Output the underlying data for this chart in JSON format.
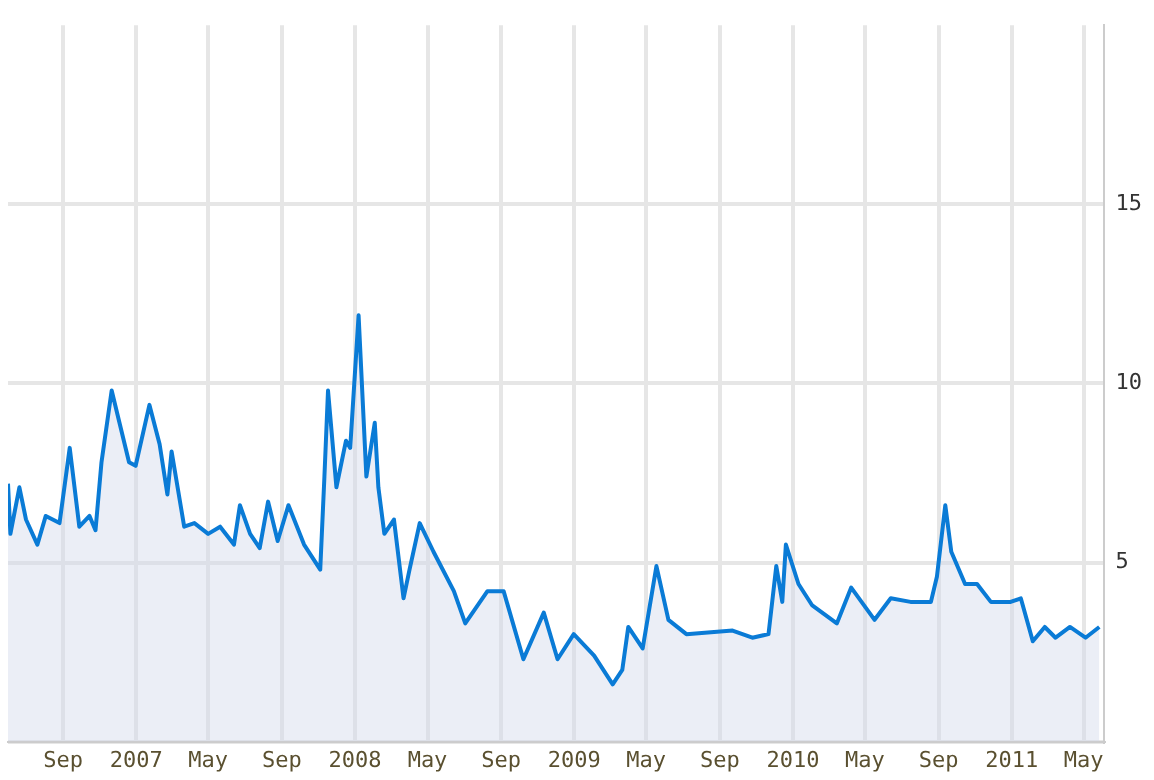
{
  "chart_data": {
    "type": "area",
    "x": [
      "2006-06-01",
      "2006-06-05",
      "2006-06-20",
      "2006-07-01",
      "2006-07-20",
      "2006-08-03",
      "2006-08-26",
      "2006-09-12",
      "2006-09-28",
      "2006-10-15",
      "2006-10-25",
      "2006-11-04",
      "2006-11-21",
      "2006-12-04",
      "2006-12-20",
      "2006-12-31",
      "2007-01-23",
      "2007-02-09",
      "2007-02-22",
      "2007-03-01",
      "2007-03-22",
      "2007-04-08",
      "2007-05-01",
      "2007-05-21",
      "2007-06-13",
      "2007-06-23",
      "2007-07-10",
      "2007-07-26",
      "2007-08-09",
      "2007-08-25",
      "2007-09-12",
      "2007-10-08",
      "2007-11-04",
      "2007-11-11",
      "2007-11-17",
      "2007-12-01",
      "2007-12-17",
      "2007-12-24",
      "2008-01-07",
      "2008-01-20",
      "2008-02-03",
      "2008-02-09",
      "2008-02-19",
      "2008-03-06",
      "2008-03-22",
      "2008-04-01",
      "2008-04-18",
      "2008-05-11",
      "2008-06-14",
      "2008-07-03",
      "2008-08-09",
      "2008-09-05",
      "2008-10-08",
      "2008-11-11",
      "2008-12-04",
      "2008-12-31",
      "2009-02-03",
      "2009-03-06",
      "2009-03-22",
      "2009-04-01",
      "2009-04-25",
      "2009-05-18",
      "2009-06-07",
      "2009-07-07",
      "2009-09-22",
      "2009-10-25",
      "2009-11-21",
      "2009-12-04",
      "2009-12-14",
      "2009-12-20",
      "2010-01-10",
      "2010-02-02",
      "2010-03-15",
      "2010-04-08",
      "2010-05-17",
      "2010-06-13",
      "2010-07-16",
      "2010-08-19",
      "2010-08-29",
      "2010-09-12",
      "2010-09-22",
      "2010-10-15",
      "2010-11-04",
      "2010-11-27",
      "2010-12-30",
      "2011-01-16",
      "2011-02-05",
      "2011-02-25",
      "2011-03-15",
      "2011-04-08",
      "2011-05-04",
      "2011-05-27"
    ],
    "series": [
      {
        "color": "#0a7bd6",
        "values": [
          7.2,
          5.8,
          7.1,
          6.2,
          5.5,
          6.3,
          6.1,
          8.2,
          6.0,
          6.3,
          5.9,
          7.8,
          9.8,
          8.9,
          7.8,
          7.7,
          9.4,
          8.3,
          6.9,
          8.1,
          6.0,
          6.1,
          5.8,
          6.0,
          5.5,
          6.6,
          5.8,
          5.4,
          6.7,
          5.6,
          6.6,
          5.5,
          4.8,
          7.4,
          9.8,
          7.1,
          8.4,
          8.2,
          11.9,
          7.4,
          8.9,
          7.1,
          5.8,
          6.2,
          4.0,
          4.8,
          6.1,
          5.3,
          4.2,
          3.3,
          4.2,
          4.2,
          2.3,
          3.6,
          2.3,
          3.0,
          2.4,
          1.6,
          2.0,
          3.2,
          2.6,
          4.9,
          3.4,
          3.0,
          3.1,
          2.9,
          3.0,
          4.9,
          3.9,
          5.5,
          4.4,
          3.8,
          3.3,
          4.3,
          3.4,
          4.0,
          3.9,
          3.9,
          4.6,
          6.6,
          5.3,
          4.4,
          4.4,
          3.9,
          3.9,
          4.0,
          2.8,
          3.2,
          2.9,
          3.2,
          2.9,
          3.2
        ]
      }
    ],
    "xlim": [
      "2006-06-01",
      "2011-06-03"
    ],
    "xticks": [
      {
        "value": "2006-09-01",
        "label": "Sep"
      },
      {
        "value": "2007-01-01",
        "label": "2007"
      },
      {
        "value": "2007-05-01",
        "label": "May"
      },
      {
        "value": "2007-09-01",
        "label": "Sep"
      },
      {
        "value": "2008-01-01",
        "label": "2008"
      },
      {
        "value": "2008-05-01",
        "label": "May"
      },
      {
        "value": "2008-09-01",
        "label": "Sep"
      },
      {
        "value": "2009-01-01",
        "label": "2009"
      },
      {
        "value": "2009-05-01",
        "label": "May"
      },
      {
        "value": "2009-09-01",
        "label": "Sep"
      },
      {
        "value": "2010-01-01",
        "label": "2010"
      },
      {
        "value": "2010-05-01",
        "label": "May"
      },
      {
        "value": "2010-09-01",
        "label": "Sep"
      },
      {
        "value": "2011-01-01",
        "label": "2011"
      },
      {
        "value": "2011-05-01",
        "label": "May"
      }
    ],
    "ylim": [
      0,
      20
    ],
    "yticks": [
      {
        "value": 0,
        "label": null
      },
      5,
      10,
      15
    ],
    "grid": true,
    "marker": "none"
  }
}
